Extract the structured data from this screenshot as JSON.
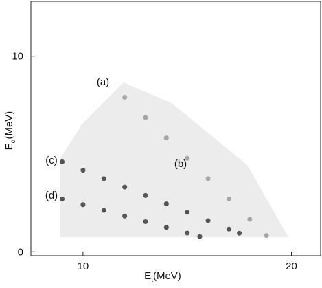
{
  "chart_data": {
    "type": "scatter",
    "x_label": {
      "main": "E",
      "sub": "t",
      "unit": "(MeV)"
    },
    "y_label": {
      "main": "E",
      "sub": "α",
      "unit": "(MeV)"
    },
    "xlim": [
      7.5,
      21.4
    ],
    "xticks": [
      10,
      20
    ],
    "ylim": [
      -0.2,
      12.8
    ],
    "yticks": [
      0,
      10
    ],
    "annotations": [
      "(a)",
      "(b)",
      "(c)",
      "(d)"
    ],
    "series": [
      {
        "name": "c",
        "color": "#3a3a3a",
        "x": [
          9,
          10,
          11,
          12,
          13,
          14,
          15,
          16,
          17,
          17.5
        ],
        "values": [
          4.6,
          4.17,
          3.74,
          3.31,
          2.88,
          2.45,
          2.02,
          1.59,
          1.16,
          0.95
        ]
      },
      {
        "name": "d",
        "color": "#3a3a3a",
        "x": [
          9,
          10,
          11,
          12,
          13,
          14,
          15,
          15.6
        ],
        "values": [
          2.7,
          2.41,
          2.12,
          1.83,
          1.54,
          1.25,
          0.96,
          0.78
        ]
      },
      {
        "name": "b",
        "color": "#9a9a9a",
        "x": [
          12,
          13,
          14,
          15,
          16,
          17,
          18,
          18.8
        ],
        "values": [
          7.9,
          6.86,
          5.82,
          4.78,
          3.74,
          2.7,
          1.66,
          0.83
        ]
      }
    ]
  }
}
